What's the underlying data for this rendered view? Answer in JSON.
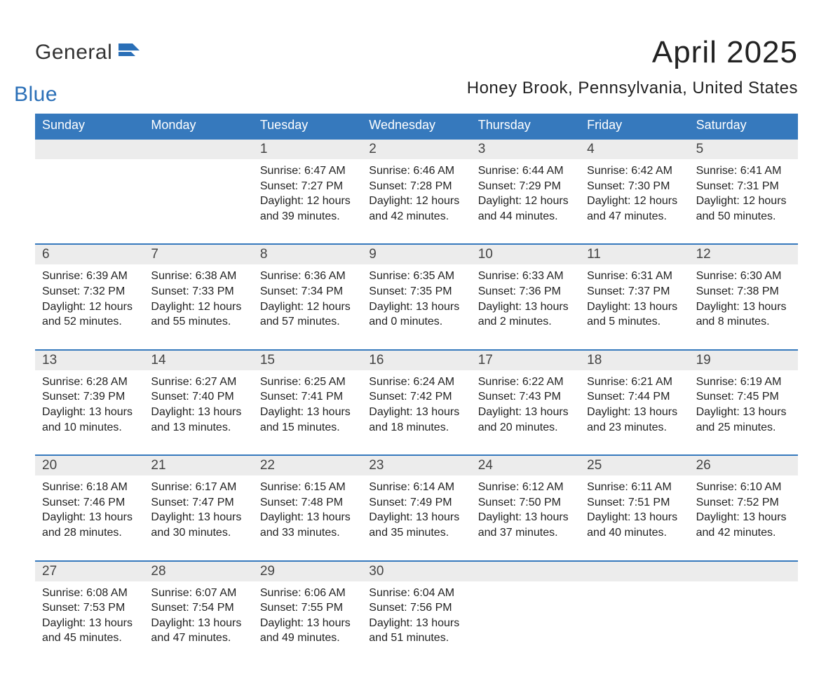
{
  "logo": {
    "text1": "General",
    "text2": "Blue",
    "iconColor": "#2a6fb7"
  },
  "title": "April 2025",
  "location": "Honey Brook, Pennsylvania, United States",
  "colors": {
    "headerBg": "#3679bd",
    "headerText": "#ffffff",
    "dayBg": "#ececec",
    "ruleColor": "#3679bd",
    "bg": "#ffffff"
  },
  "weekdays": [
    "Sunday",
    "Monday",
    "Tuesday",
    "Wednesday",
    "Thursday",
    "Friday",
    "Saturday"
  ],
  "weeks": [
    {
      "days": [
        null,
        null,
        {
          "n": "1",
          "sunrise": "Sunrise: 6:47 AM",
          "sunset": "Sunset: 7:27 PM",
          "daylight1": "Daylight: 12 hours",
          "daylight2": "and 39 minutes."
        },
        {
          "n": "2",
          "sunrise": "Sunrise: 6:46 AM",
          "sunset": "Sunset: 7:28 PM",
          "daylight1": "Daylight: 12 hours",
          "daylight2": "and 42 minutes."
        },
        {
          "n": "3",
          "sunrise": "Sunrise: 6:44 AM",
          "sunset": "Sunset: 7:29 PM",
          "daylight1": "Daylight: 12 hours",
          "daylight2": "and 44 minutes."
        },
        {
          "n": "4",
          "sunrise": "Sunrise: 6:42 AM",
          "sunset": "Sunset: 7:30 PM",
          "daylight1": "Daylight: 12 hours",
          "daylight2": "and 47 minutes."
        },
        {
          "n": "5",
          "sunrise": "Sunrise: 6:41 AM",
          "sunset": "Sunset: 7:31 PM",
          "daylight1": "Daylight: 12 hours",
          "daylight2": "and 50 minutes."
        }
      ]
    },
    {
      "days": [
        {
          "n": "6",
          "sunrise": "Sunrise: 6:39 AM",
          "sunset": "Sunset: 7:32 PM",
          "daylight1": "Daylight: 12 hours",
          "daylight2": "and 52 minutes."
        },
        {
          "n": "7",
          "sunrise": "Sunrise: 6:38 AM",
          "sunset": "Sunset: 7:33 PM",
          "daylight1": "Daylight: 12 hours",
          "daylight2": "and 55 minutes."
        },
        {
          "n": "8",
          "sunrise": "Sunrise: 6:36 AM",
          "sunset": "Sunset: 7:34 PM",
          "daylight1": "Daylight: 12 hours",
          "daylight2": "and 57 minutes."
        },
        {
          "n": "9",
          "sunrise": "Sunrise: 6:35 AM",
          "sunset": "Sunset: 7:35 PM",
          "daylight1": "Daylight: 13 hours",
          "daylight2": "and 0 minutes."
        },
        {
          "n": "10",
          "sunrise": "Sunrise: 6:33 AM",
          "sunset": "Sunset: 7:36 PM",
          "daylight1": "Daylight: 13 hours",
          "daylight2": "and 2 minutes."
        },
        {
          "n": "11",
          "sunrise": "Sunrise: 6:31 AM",
          "sunset": "Sunset: 7:37 PM",
          "daylight1": "Daylight: 13 hours",
          "daylight2": "and 5 minutes."
        },
        {
          "n": "12",
          "sunrise": "Sunrise: 6:30 AM",
          "sunset": "Sunset: 7:38 PM",
          "daylight1": "Daylight: 13 hours",
          "daylight2": "and 8 minutes."
        }
      ]
    },
    {
      "days": [
        {
          "n": "13",
          "sunrise": "Sunrise: 6:28 AM",
          "sunset": "Sunset: 7:39 PM",
          "daylight1": "Daylight: 13 hours",
          "daylight2": "and 10 minutes."
        },
        {
          "n": "14",
          "sunrise": "Sunrise: 6:27 AM",
          "sunset": "Sunset: 7:40 PM",
          "daylight1": "Daylight: 13 hours",
          "daylight2": "and 13 minutes."
        },
        {
          "n": "15",
          "sunrise": "Sunrise: 6:25 AM",
          "sunset": "Sunset: 7:41 PM",
          "daylight1": "Daylight: 13 hours",
          "daylight2": "and 15 minutes."
        },
        {
          "n": "16",
          "sunrise": "Sunrise: 6:24 AM",
          "sunset": "Sunset: 7:42 PM",
          "daylight1": "Daylight: 13 hours",
          "daylight2": "and 18 minutes."
        },
        {
          "n": "17",
          "sunrise": "Sunrise: 6:22 AM",
          "sunset": "Sunset: 7:43 PM",
          "daylight1": "Daylight: 13 hours",
          "daylight2": "and 20 minutes."
        },
        {
          "n": "18",
          "sunrise": "Sunrise: 6:21 AM",
          "sunset": "Sunset: 7:44 PM",
          "daylight1": "Daylight: 13 hours",
          "daylight2": "and 23 minutes."
        },
        {
          "n": "19",
          "sunrise": "Sunrise: 6:19 AM",
          "sunset": "Sunset: 7:45 PM",
          "daylight1": "Daylight: 13 hours",
          "daylight2": "and 25 minutes."
        }
      ]
    },
    {
      "days": [
        {
          "n": "20",
          "sunrise": "Sunrise: 6:18 AM",
          "sunset": "Sunset: 7:46 PM",
          "daylight1": "Daylight: 13 hours",
          "daylight2": "and 28 minutes."
        },
        {
          "n": "21",
          "sunrise": "Sunrise: 6:17 AM",
          "sunset": "Sunset: 7:47 PM",
          "daylight1": "Daylight: 13 hours",
          "daylight2": "and 30 minutes."
        },
        {
          "n": "22",
          "sunrise": "Sunrise: 6:15 AM",
          "sunset": "Sunset: 7:48 PM",
          "daylight1": "Daylight: 13 hours",
          "daylight2": "and 33 minutes."
        },
        {
          "n": "23",
          "sunrise": "Sunrise: 6:14 AM",
          "sunset": "Sunset: 7:49 PM",
          "daylight1": "Daylight: 13 hours",
          "daylight2": "and 35 minutes."
        },
        {
          "n": "24",
          "sunrise": "Sunrise: 6:12 AM",
          "sunset": "Sunset: 7:50 PM",
          "daylight1": "Daylight: 13 hours",
          "daylight2": "and 37 minutes."
        },
        {
          "n": "25",
          "sunrise": "Sunrise: 6:11 AM",
          "sunset": "Sunset: 7:51 PM",
          "daylight1": "Daylight: 13 hours",
          "daylight2": "and 40 minutes."
        },
        {
          "n": "26",
          "sunrise": "Sunrise: 6:10 AM",
          "sunset": "Sunset: 7:52 PM",
          "daylight1": "Daylight: 13 hours",
          "daylight2": "and 42 minutes."
        }
      ]
    },
    {
      "days": [
        {
          "n": "27",
          "sunrise": "Sunrise: 6:08 AM",
          "sunset": "Sunset: 7:53 PM",
          "daylight1": "Daylight: 13 hours",
          "daylight2": "and 45 minutes."
        },
        {
          "n": "28",
          "sunrise": "Sunrise: 6:07 AM",
          "sunset": "Sunset: 7:54 PM",
          "daylight1": "Daylight: 13 hours",
          "daylight2": "and 47 minutes."
        },
        {
          "n": "29",
          "sunrise": "Sunrise: 6:06 AM",
          "sunset": "Sunset: 7:55 PM",
          "daylight1": "Daylight: 13 hours",
          "daylight2": "and 49 minutes."
        },
        {
          "n": "30",
          "sunrise": "Sunrise: 6:04 AM",
          "sunset": "Sunset: 7:56 PM",
          "daylight1": "Daylight: 13 hours",
          "daylight2": "and 51 minutes."
        },
        null,
        null,
        null
      ]
    }
  ]
}
